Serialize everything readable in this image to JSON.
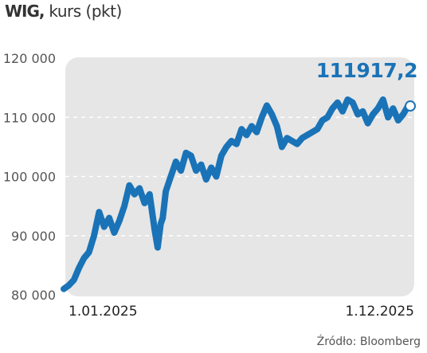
{
  "title": {
    "name": "WIG",
    "separator": ",",
    "subtitle": "kurs (pkt)"
  },
  "source": "Źródło: Bloomberg",
  "colors": {
    "line": "#1a73b7",
    "plot_bg": "#e6e6e6",
    "grid": "#ffffff",
    "label": "#1a73b7"
  },
  "chart_data": {
    "type": "line",
    "title": "WIG, kurs (pkt)",
    "ylim": [
      80000,
      120000
    ],
    "y_ticks": [
      80000,
      90000,
      100000,
      110000,
      120000
    ],
    "y_tick_labels": [
      "80 000",
      "90 000",
      "100 000",
      "110 000",
      "120 000"
    ],
    "x_tick_labels": [
      "1.01.2025",
      "1.12.2025"
    ],
    "grid": "horizontal dashed",
    "last_value_label": "111917,2",
    "series": [
      {
        "x": [
          "2025-01-01",
          "2025-01-06",
          "2025-01-11",
          "2025-01-16",
          "2025-01-21",
          "2025-01-26",
          "2025-01-31",
          "2025-02-05",
          "2025-02-10",
          "2025-02-15",
          "2025-02-20",
          "2025-02-25",
          "2025-03-02",
          "2025-03-07",
          "2025-03-12",
          "2025-03-17",
          "2025-03-22",
          "2025-03-27",
          "2025-04-01",
          "2025-04-04",
          "2025-04-07",
          "2025-04-09",
          "2025-04-12",
          "2025-04-17",
          "2025-04-22",
          "2025-04-27",
          "2025-05-02",
          "2025-05-07",
          "2025-05-12",
          "2025-05-17",
          "2025-05-22",
          "2025-05-27",
          "2025-06-01",
          "2025-06-06",
          "2025-06-11",
          "2025-06-16",
          "2025-06-21",
          "2025-06-26",
          "2025-07-01",
          "2025-07-06",
          "2025-07-11",
          "2025-07-16",
          "2025-07-21",
          "2025-07-26",
          "2025-07-31",
          "2025-08-05",
          "2025-08-10",
          "2025-08-15",
          "2025-08-20",
          "2025-08-25",
          "2025-08-30",
          "2025-09-04",
          "2025-09-09",
          "2025-09-14",
          "2025-09-19",
          "2025-09-24",
          "2025-09-29",
          "2025-10-04",
          "2025-10-09",
          "2025-10-14",
          "2025-10-19",
          "2025-10-24",
          "2025-10-29",
          "2025-11-03",
          "2025-11-08",
          "2025-11-13",
          "2025-11-18",
          "2025-11-23",
          "2025-11-28",
          "2025-12-03",
          "2025-12-08",
          "2025-12-10"
        ],
        "y": [
          81000,
          81600,
          82500,
          84500,
          86200,
          87200,
          90000,
          94000,
          91500,
          93000,
          90500,
          92500,
          95000,
          98500,
          97000,
          98000,
          95500,
          97000,
          91000,
          88000,
          92000,
          93000,
          97500,
          100000,
          102500,
          101000,
          104000,
          103500,
          101000,
          102000,
          99500,
          101500,
          100000,
          103500,
          105000,
          106000,
          105500,
          108000,
          107000,
          108500,
          107500,
          110000,
          112000,
          110500,
          108500,
          105000,
          106500,
          106000,
          105500,
          106500,
          107000,
          107500,
          108000,
          109500,
          110000,
          111500,
          112500,
          111000,
          113000,
          112500,
          110500,
          111000,
          109000,
          110500,
          111500,
          113000,
          110000,
          111500,
          109500,
          110500,
          112000,
          111917.2
        ]
      }
    ]
  }
}
